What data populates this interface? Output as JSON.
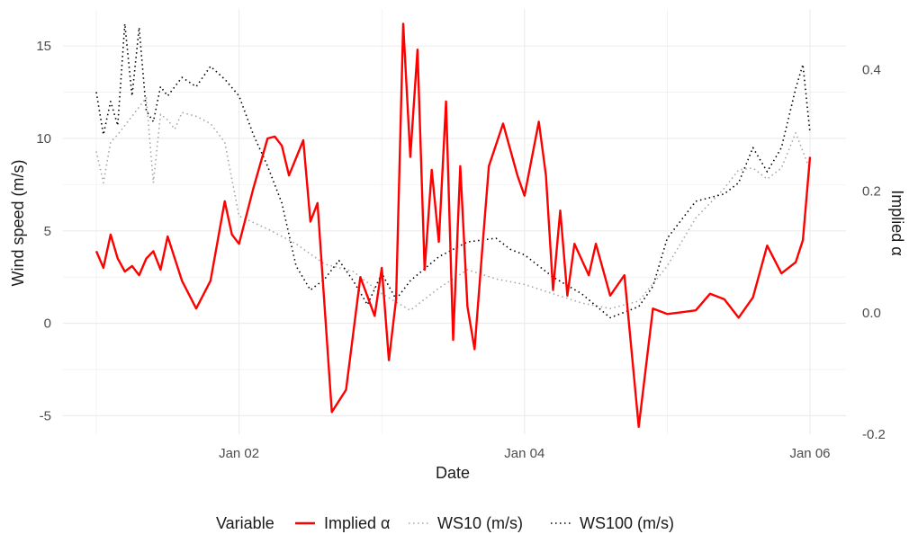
{
  "chart_data": {
    "type": "line",
    "xlabel": "Date",
    "ylabel_left": "Wind speed (m/s)",
    "ylabel_right": "Implied α",
    "x_domain": [
      "2024-01-01T00:00",
      "2024-01-06T00:00"
    ],
    "x_ticks": [
      {
        "t": "2024-01-02T00:00",
        "label": "Jan 02"
      },
      {
        "t": "2024-01-04T00:00",
        "label": "Jan 04"
      },
      {
        "t": "2024-01-06T00:00",
        "label": "Jan 06"
      }
    ],
    "y_left": {
      "min": -6,
      "max": 17,
      "ticks": [
        -5,
        0,
        5,
        10,
        15
      ],
      "labels": [
        "-5",
        "0",
        "5",
        "10",
        "15"
      ]
    },
    "y_right": {
      "min": -0.2,
      "max": 0.5,
      "ticks": [
        -0.2,
        0.0,
        0.2,
        0.4
      ],
      "labels": [
        "-0.2",
        "0.0",
        "0.2",
        "0.4"
      ]
    },
    "grid": true,
    "legend": {
      "position": "bottom",
      "title": "Variable"
    },
    "colors": {
      "implied": "#ff0000",
      "ws10": "#a6a6a6",
      "ws100": "#000000",
      "grid": "#ebebeb"
    },
    "series": [
      {
        "name": "Implied α",
        "axis": "left",
        "style": "solid",
        "x": [
          "2024-01-01T00:00",
          "2024-01-01T01:12",
          "2024-01-01T02:24",
          "2024-01-01T03:36",
          "2024-01-01T04:48",
          "2024-01-01T06:00",
          "2024-01-01T07:12",
          "2024-01-01T08:24",
          "2024-01-01T09:36",
          "2024-01-01T10:48",
          "2024-01-01T12:00",
          "2024-01-01T14:24",
          "2024-01-01T16:48",
          "2024-01-01T19:12",
          "2024-01-01T21:36",
          "2024-01-01T22:48",
          "2024-01-02T00:00",
          "2024-01-02T02:24",
          "2024-01-02T04:48",
          "2024-01-02T06:00",
          "2024-01-02T07:12",
          "2024-01-02T08:24",
          "2024-01-02T10:48",
          "2024-01-02T12:00",
          "2024-01-02T13:12",
          "2024-01-02T15:36",
          "2024-01-02T18:00",
          "2024-01-02T20:24",
          "2024-01-02T22:48",
          "2024-01-03T00:00",
          "2024-01-03T01:12",
          "2024-01-03T02:24",
          "2024-01-03T03:36",
          "2024-01-03T04:48",
          "2024-01-03T06:00",
          "2024-01-03T07:12",
          "2024-01-03T08:24",
          "2024-01-03T09:36",
          "2024-01-03T10:48",
          "2024-01-03T12:00",
          "2024-01-03T13:12",
          "2024-01-03T14:24",
          "2024-01-03T15:36",
          "2024-01-03T16:48",
          "2024-01-03T18:00",
          "2024-01-03T20:24",
          "2024-01-03T22:48",
          "2024-01-04T00:00",
          "2024-01-04T02:24",
          "2024-01-04T03:36",
          "2024-01-04T04:48",
          "2024-01-04T06:00",
          "2024-01-04T07:12",
          "2024-01-04T08:24",
          "2024-01-04T10:48",
          "2024-01-04T12:00",
          "2024-01-04T14:24",
          "2024-01-04T16:48",
          "2024-01-04T19:12",
          "2024-01-04T21:36",
          "2024-01-05T00:00",
          "2024-01-05T02:24",
          "2024-01-05T04:48",
          "2024-01-05T07:12",
          "2024-01-05T09:36",
          "2024-01-05T12:00",
          "2024-01-05T14:24",
          "2024-01-05T16:48",
          "2024-01-05T19:12",
          "2024-01-05T21:36",
          "2024-01-05T22:48",
          "2024-01-06T00:00"
        ],
        "y": [
          3.9,
          3.0,
          4.8,
          3.5,
          2.8,
          3.1,
          2.6,
          3.5,
          3.9,
          2.9,
          4.7,
          2.3,
          0.8,
          2.3,
          6.6,
          4.8,
          4.3,
          7.3,
          10.0,
          10.1,
          9.6,
          8.0,
          9.9,
          5.5,
          6.5,
          -4.8,
          -3.6,
          2.5,
          0.4,
          3.0,
          -2.0,
          1.3,
          16.2,
          9.0,
          14.8,
          2.9,
          8.3,
          4.4,
          12.0,
          -0.9,
          8.5,
          0.9,
          -1.4,
          3.6,
          8.5,
          10.8,
          8.0,
          6.9,
          10.9,
          8.0,
          1.8,
          6.1,
          1.5,
          4.3,
          2.6,
          4.3,
          1.5,
          2.6,
          -5.6,
          0.8,
          0.5,
          0.6,
          0.7,
          1.6,
          1.3,
          0.3,
          1.4,
          4.2,
          2.7,
          3.3,
          4.5,
          9.0
        ]
      },
      {
        "name": "WS10 (m/s)",
        "axis": "left",
        "style": "dotted",
        "x": [
          "2024-01-01T00:00",
          "2024-01-01T01:12",
          "2024-01-01T02:24",
          "2024-01-01T03:36",
          "2024-01-01T06:00",
          "2024-01-01T08:24",
          "2024-01-01T09:36",
          "2024-01-01T10:48",
          "2024-01-01T12:00",
          "2024-01-01T13:12",
          "2024-01-01T14:24",
          "2024-01-01T16:48",
          "2024-01-01T19:12",
          "2024-01-01T21:36",
          "2024-01-02T00:00",
          "2024-01-02T04:48",
          "2024-01-02T09:36",
          "2024-01-02T14:24",
          "2024-01-02T19:12",
          "2024-01-03T00:00",
          "2024-01-03T04:48",
          "2024-01-03T09:36",
          "2024-01-03T14:24",
          "2024-01-03T19:12",
          "2024-01-04T00:00",
          "2024-01-04T04:48",
          "2024-01-04T09:36",
          "2024-01-04T14:24",
          "2024-01-04T19:12",
          "2024-01-05T00:00",
          "2024-01-05T04:48",
          "2024-01-05T09:36",
          "2024-01-05T12:00",
          "2024-01-05T14:24",
          "2024-01-05T16:48",
          "2024-01-05T19:12",
          "2024-01-05T21:36",
          "2024-01-06T00:00"
        ],
        "y": [
          9.3,
          7.6,
          9.8,
          10.2,
          11.2,
          12.2,
          7.6,
          11.3,
          11.0,
          10.5,
          11.4,
          11.2,
          10.8,
          9.8,
          5.8,
          5.1,
          4.3,
          3.2,
          2.8,
          1.6,
          0.7,
          1.9,
          2.9,
          2.4,
          2.1,
          1.6,
          1.1,
          0.8,
          1.2,
          3.1,
          5.7,
          7.3,
          8.3,
          8.4,
          7.8,
          8.4,
          10.3,
          8.3
        ]
      },
      {
        "name": "WS100 (m/s)",
        "axis": "left",
        "style": "dotted",
        "x": [
          "2024-01-01T00:00",
          "2024-01-01T01:12",
          "2024-01-01T02:24",
          "2024-01-01T03:36",
          "2024-01-01T04:48",
          "2024-01-01T06:00",
          "2024-01-01T07:12",
          "2024-01-01T08:24",
          "2024-01-01T09:36",
          "2024-01-01T10:48",
          "2024-01-01T12:00",
          "2024-01-01T14:24",
          "2024-01-01T16:48",
          "2024-01-01T19:12",
          "2024-01-01T21:36",
          "2024-01-02T00:00",
          "2024-01-02T02:24",
          "2024-01-02T04:48",
          "2024-01-02T07:12",
          "2024-01-02T09:36",
          "2024-01-02T12:00",
          "2024-01-02T14:24",
          "2024-01-02T16:48",
          "2024-01-02T19:12",
          "2024-01-02T21:36",
          "2024-01-03T00:00",
          "2024-01-03T02:24",
          "2024-01-03T04:48",
          "2024-01-03T09:36",
          "2024-01-03T14:24",
          "2024-01-03T19:12",
          "2024-01-03T21:36",
          "2024-01-04T00:00",
          "2024-01-04T04:48",
          "2024-01-04T09:36",
          "2024-01-04T14:24",
          "2024-01-04T19:12",
          "2024-01-04T21:36",
          "2024-01-05T00:00",
          "2024-01-05T04:48",
          "2024-01-05T09:36",
          "2024-01-05T12:00",
          "2024-01-05T14:24",
          "2024-01-05T16:48",
          "2024-01-05T19:12",
          "2024-01-05T21:36",
          "2024-01-05T22:48",
          "2024-01-06T00:00"
        ],
        "y": [
          12.5,
          10.2,
          12.0,
          10.7,
          16.2,
          12.3,
          16.0,
          11.5,
          10.9,
          12.8,
          12.3,
          13.3,
          12.8,
          13.9,
          13.2,
          12.3,
          10.2,
          8.5,
          6.5,
          3.1,
          1.8,
          2.4,
          3.4,
          2.3,
          1.0,
          2.7,
          1.3,
          2.3,
          3.6,
          4.4,
          4.6,
          4.0,
          3.7,
          2.5,
          1.6,
          0.3,
          0.9,
          2.0,
          4.6,
          6.6,
          7.0,
          7.6,
          9.5,
          8.2,
          9.5,
          12.7,
          14.0,
          10.3
        ]
      }
    ]
  }
}
